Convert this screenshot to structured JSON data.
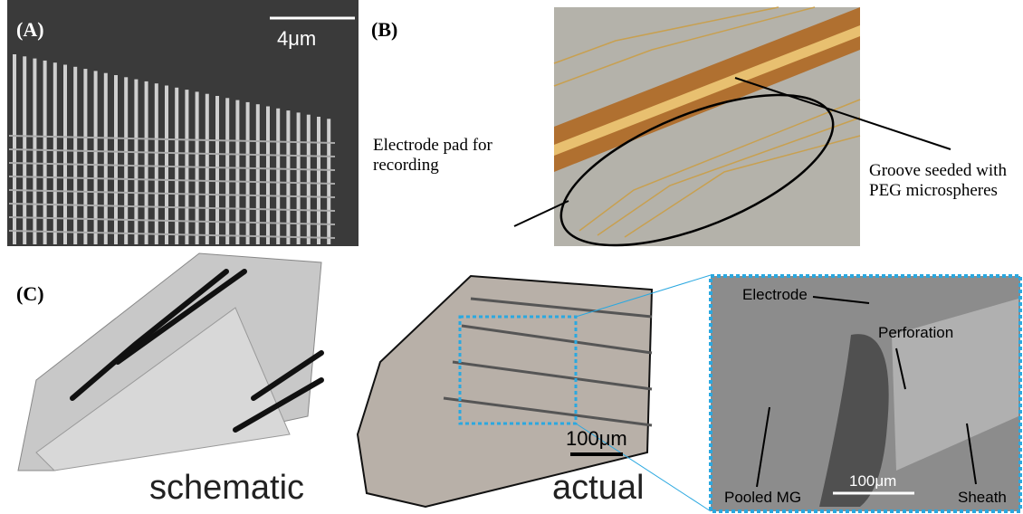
{
  "panel_a": {
    "label": "(A)",
    "scale_bar": "4μm"
  },
  "panel_b": {
    "label": "(B)",
    "annotations": [
      "Electrode pad for recording",
      "Groove seeded with PEG microspheres"
    ]
  },
  "panel_c": {
    "label": "(C)",
    "schematic_caption": "schematic",
    "actual_caption": "actual",
    "actual_scale_bar": "100μm",
    "inset": {
      "annotations": [
        "Electrode",
        "Perforation",
        "Pooled MG",
        "Sheath"
      ],
      "scale_bar": "100μm"
    }
  }
}
